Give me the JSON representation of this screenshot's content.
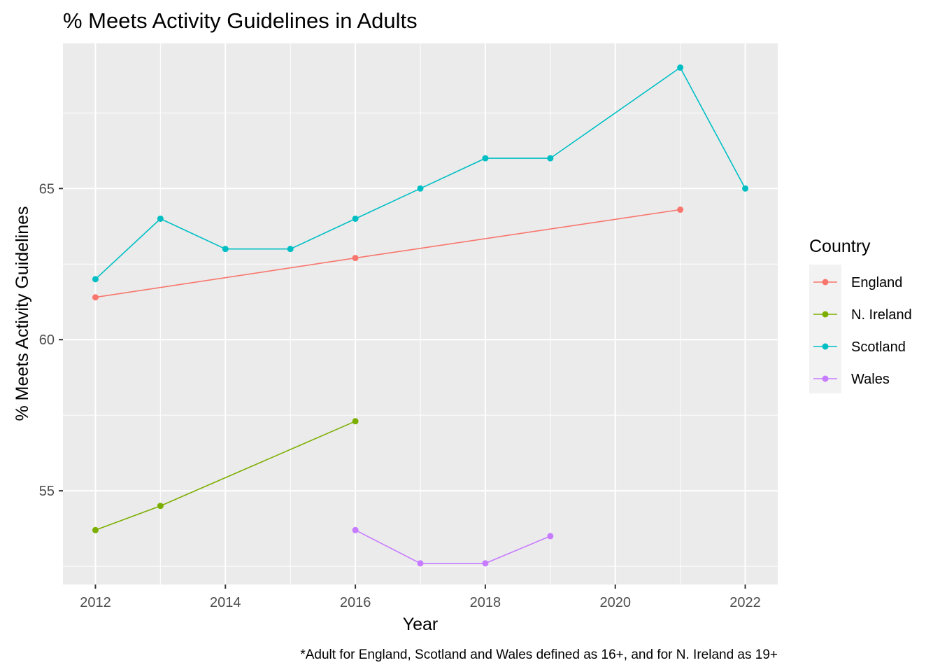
{
  "chart_data": {
    "type": "line",
    "title": "% Meets Activity Guidelines in Adults",
    "xlabel": "Year",
    "ylabel": "% Meets Activity Guidelines",
    "caption": "*Adult for England, Scotland and Wales defined as 16+, and for N. Ireland as 19+",
    "xlim": [
      2011.5,
      2022.5
    ],
    "ylim": [
      51.9,
      69.8
    ],
    "x_ticks": [
      2012,
      2014,
      2016,
      2018,
      2020,
      2022
    ],
    "y_ticks": [
      55,
      60,
      65
    ],
    "grid": true,
    "legend": {
      "title": "Country",
      "position": "right"
    },
    "series": [
      {
        "name": "England",
        "color": "#F8766D",
        "x": [
          2012,
          2016,
          2021
        ],
        "y": [
          61.4,
          62.7,
          64.3
        ]
      },
      {
        "name": "N. Ireland",
        "color": "#7CAE00",
        "x": [
          2012,
          2013,
          2016
        ],
        "y": [
          53.7,
          54.5,
          57.3
        ]
      },
      {
        "name": "Scotland",
        "color": "#00BFC4",
        "x": [
          2012,
          2013,
          2014,
          2015,
          2016,
          2017,
          2018,
          2019,
          2021,
          2022
        ],
        "y": [
          62,
          64,
          63,
          63,
          64,
          65,
          66,
          66,
          69,
          65
        ]
      },
      {
        "name": "Wales",
        "color": "#C77CFF",
        "x": [
          2016,
          2017,
          2018,
          2019
        ],
        "y": [
          53.7,
          52.6,
          52.6,
          53.5
        ]
      }
    ]
  }
}
